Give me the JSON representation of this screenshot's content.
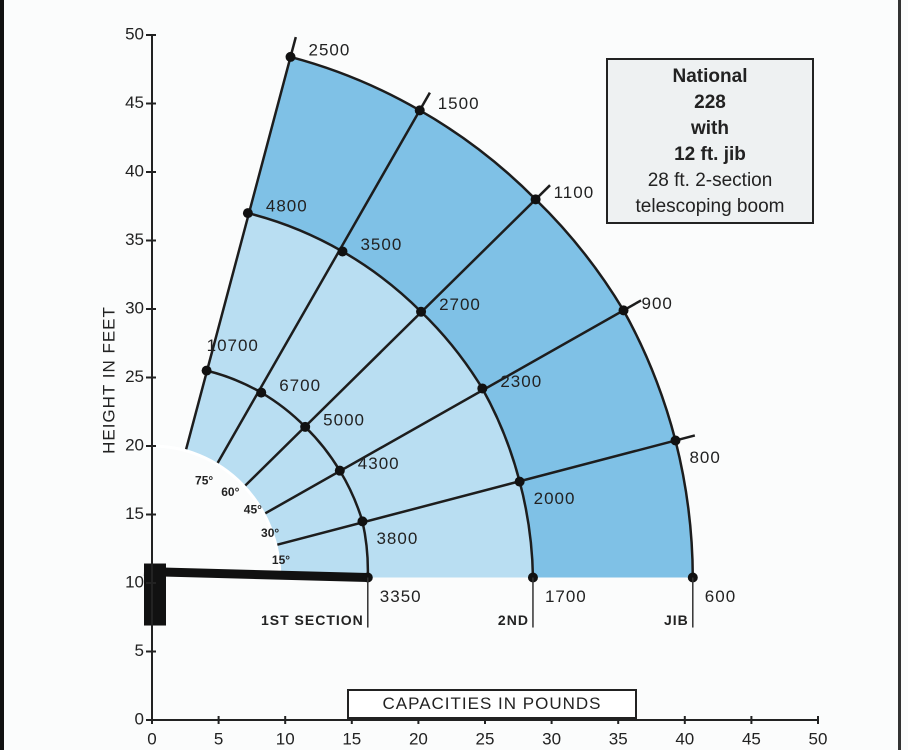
{
  "chart_data": {
    "type": "load-chart",
    "ylabel": "HEIGHT IN FEET",
    "xlabel": "CAPACITIES IN POUNDS",
    "info_box": [
      "National",
      "228",
      "with",
      "12 ft. jib",
      "28 ft. 2-section",
      "telescoping boom"
    ],
    "xlim": [
      0,
      50
    ],
    "xticks": [
      0,
      5,
      10,
      15,
      20,
      25,
      30,
      35,
      40,
      45,
      50
    ],
    "ylim": [
      0,
      50
    ],
    "yticks": [
      0,
      5,
      10,
      15,
      20,
      25,
      30,
      35,
      40,
      45,
      50
    ],
    "angles": [
      {
        "value": 75,
        "label": "75°"
      },
      {
        "value": 60,
        "label": "60°"
      },
      {
        "value": 45,
        "label": "45°"
      },
      {
        "value": 30,
        "label": "30°"
      },
      {
        "value": 15,
        "label": "15°"
      }
    ],
    "series": [
      {
        "name": "1ST SECTION",
        "color": "#b9def2",
        "x": [
          4.1,
          8.2,
          11.5,
          14.1,
          15.8,
          16.2
        ],
        "y": [
          25.5,
          23.9,
          21.4,
          18.2,
          14.5,
          10.4
        ],
        "capacities": [
          10700,
          6700,
          5000,
          4300,
          3800,
          3350
        ]
      },
      {
        "name": "2ND",
        "color": "#b9def2",
        "x": [
          7.2,
          14.3,
          20.2,
          24.8,
          27.6,
          28.6
        ],
        "y": [
          37.0,
          34.2,
          29.8,
          24.2,
          17.4,
          10.4
        ],
        "capacities": [
          4800,
          3500,
          2700,
          2300,
          2000,
          1700
        ]
      },
      {
        "name": "JIB",
        "color": "#7fc1e6",
        "x": [
          10.4,
          20.1,
          28.8,
          35.4,
          39.3,
          40.6
        ],
        "y": [
          48.4,
          44.5,
          38.0,
          29.9,
          20.4,
          10.4
        ],
        "capacities": [
          2500,
          1500,
          1100,
          900,
          800,
          600
        ]
      }
    ]
  }
}
